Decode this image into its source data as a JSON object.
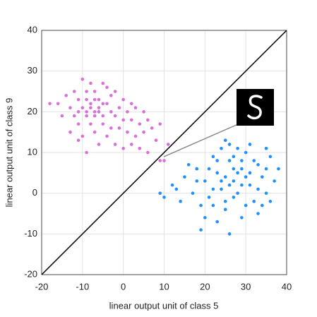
{
  "chart_data": {
    "type": "scatter",
    "xlabel": "linear output unit of class 5",
    "ylabel": "linear output unit of class 9",
    "xlim": [
      -20,
      40
    ],
    "ylim": [
      -20,
      40
    ],
    "xticks": [
      -20,
      -10,
      0,
      10,
      20,
      30,
      40
    ],
    "yticks": [
      -20,
      -10,
      0,
      10,
      20,
      30,
      40
    ],
    "grid": true,
    "series": [
      {
        "color": "#da70d6",
        "x": [
          -10,
          -8,
          -5,
          -12,
          -9,
          -7,
          -4,
          -2,
          -14,
          -11,
          -9,
          -6,
          -3,
          0,
          2,
          -16,
          -13,
          -10,
          -8,
          -6,
          -4,
          -1,
          1,
          3,
          5,
          -18,
          -12,
          -9,
          -7,
          -5,
          -2,
          0,
          2,
          4,
          6,
          -15,
          -11,
          -8,
          -5,
          -3,
          -1,
          1,
          3,
          5,
          7,
          9,
          -13,
          -10,
          -7,
          -4,
          -6,
          -2,
          0,
          2,
          4,
          6,
          -9,
          10,
          9,
          11,
          -11,
          8,
          -7,
          -6,
          -8,
          -5,
          -7,
          -9,
          -11,
          -3
        ],
        "values": [
          28,
          27,
          27,
          25,
          25,
          25,
          26,
          25,
          24,
          23,
          23,
          23,
          24,
          23,
          22,
          22,
          21,
          21,
          22,
          21,
          22,
          21,
          20,
          21,
          20,
          22,
          19,
          19,
          20,
          19,
          19,
          18,
          18,
          17,
          18,
          19,
          17,
          17,
          17,
          16,
          16,
          15,
          14,
          15,
          16,
          17,
          15,
          14,
          15,
          14,
          12,
          12,
          11,
          12,
          11,
          10,
          10,
          8,
          8,
          12,
          13,
          13,
          19,
          20,
          21,
          22,
          23,
          20,
          20,
          20
        ]
      },
      {
        "color": "#1e90ff",
        "x": [
          9,
          10,
          12,
          14,
          16,
          18,
          20,
          17,
          19,
          21,
          22,
          23,
          24,
          25,
          26,
          27,
          28,
          29,
          30,
          31,
          32,
          33,
          34,
          35,
          36,
          37,
          38,
          24,
          26,
          28,
          31,
          20,
          23,
          26,
          29,
          33,
          19,
          22,
          25,
          27,
          30,
          34,
          21,
          23,
          25,
          27,
          29,
          31,
          33,
          35,
          24,
          26,
          28,
          30,
          32,
          22,
          18,
          15,
          13,
          36,
          25,
          35,
          27,
          29
        ],
        "values": [
          0,
          -1,
          2,
          -2,
          7,
          6,
          3,
          0,
          -3,
          -1,
          9,
          5,
          1,
          -4,
          8,
          3,
          0,
          6,
          10,
          2,
          -2,
          7,
          4,
          0,
          9,
          3,
          6,
          11,
          12,
          11,
          12,
          -6,
          -7,
          -10,
          -6,
          -5,
          -9,
          -3,
          -2,
          -1,
          -3,
          -3,
          6,
          8,
          4,
          6,
          2,
          5,
          1,
          6,
          3,
          2,
          5,
          4,
          8,
          1,
          3,
          4,
          1,
          -2,
          13,
          11,
          9,
          8
        ]
      }
    ]
  }
}
